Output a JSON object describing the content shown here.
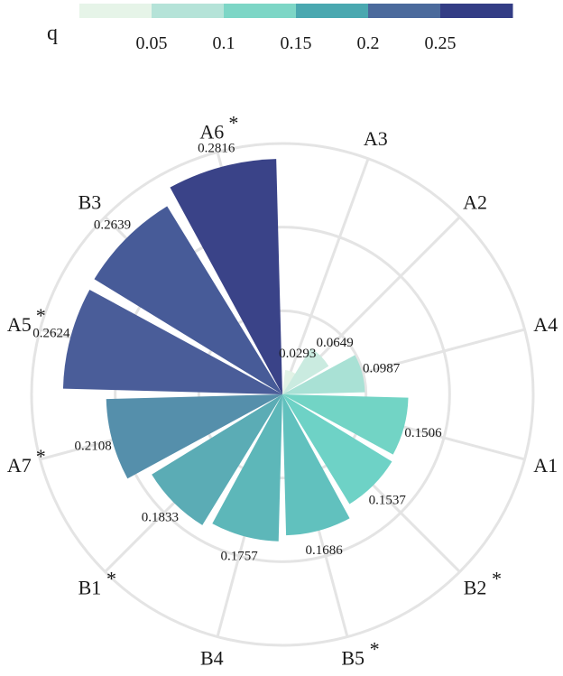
{
  "chart_data": {
    "type": "radial-bar",
    "legend": {
      "title": "q",
      "ticks": [
        "0.05",
        "0.1",
        "0.15",
        "0.2",
        "0.25"
      ],
      "tick_values": [
        0.05,
        0.1,
        0.15,
        0.2,
        0.25
      ],
      "range": [
        0,
        0.3
      ],
      "colors": [
        "#e6f4e8",
        "#b5e3d8",
        "#7dd6c6",
        "#4aa8b0",
        "#4b6a9c",
        "#333d85"
      ]
    },
    "radius_max": 0.3,
    "grid_circles": [
      0.1,
      0.2,
      0.3
    ],
    "bars": [
      {
        "label": "A3",
        "value": 0.0293,
        "value_text": "0.0293",
        "color": "#e1f2e5",
        "angle": 20,
        "star": false
      },
      {
        "label": "A2",
        "value": 0.0649,
        "value_text": "0.0649",
        "color": "#c9ebdf",
        "angle": 45,
        "star": false
      },
      {
        "label": "A4",
        "value": 0.0987,
        "value_text": "0.0987",
        "color": "#a7e0d4",
        "angle": 75,
        "star": false
      },
      {
        "label": "A1",
        "value": 0.1506,
        "value_text": "0.1506",
        "color": "#6fd3c4",
        "angle": 105,
        "star": false
      },
      {
        "label": "B2",
        "value": 0.1537,
        "value_text": "0.1537",
        "color": "#6bd1c5",
        "angle": 135,
        "star": true
      },
      {
        "label": "B5",
        "value": 0.1686,
        "value_text": "0.1686",
        "color": "#5ec0bd",
        "angle": 165,
        "star": true
      },
      {
        "label": "B4",
        "value": 0.1757,
        "value_text": "0.1757",
        "color": "#5ab6b8",
        "angle": 195,
        "star": false
      },
      {
        "label": "B1",
        "value": 0.1833,
        "value_text": "0.1833",
        "color": "#58aab4",
        "angle": 225,
        "star": true
      },
      {
        "label": "A7",
        "value": 0.2108,
        "value_text": "0.2108",
        "color": "#528da9",
        "angle": 255,
        "star": true
      },
      {
        "label": "A5",
        "value": 0.2624,
        "value_text": "0.2624",
        "color": "#465a97",
        "angle": 285,
        "star": true
      },
      {
        "label": "B3",
        "value": 0.2639,
        "value_text": "0.2639",
        "color": "#435896",
        "angle": 315,
        "star": false
      },
      {
        "label": "A6",
        "value": 0.2816,
        "value_text": "0.2816",
        "color": "#363f86",
        "angle": 345,
        "star": true
      }
    ]
  }
}
